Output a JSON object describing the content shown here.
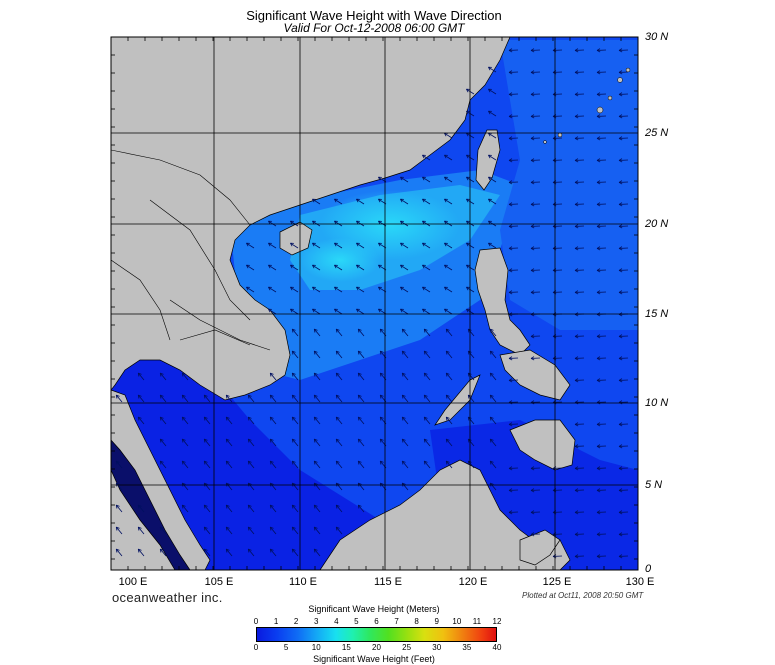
{
  "header": {
    "title": "Significant Wave Height with Wave Direction",
    "subtitle": "Valid For Oct-12-2008 06:00 GMT"
  },
  "map": {
    "lat_labels": [
      "30 N",
      "25 N",
      "20 N",
      "15 N",
      "10 N",
      "5 N",
      "0"
    ],
    "lon_labels": [
      "100 E",
      "105 E",
      "110 E",
      "115 E",
      "120 E",
      "125 E",
      "130 E"
    ],
    "land_color": "#c0c0c0",
    "sea_colors": {
      "deep_blue": "#0a1ae8",
      "blue": "#0f47f0",
      "light_blue": "#1a7cf5",
      "cyan": "#29c8f5"
    }
  },
  "footer": {
    "brand": "oceanweather inc.",
    "plotted": "Plotted at Oct11, 2008 20:50 GMT"
  },
  "colorbar": {
    "title_top": "Significant Wave Height (Meters)",
    "title_bottom": "Significant Wave Height (Feet)",
    "meters": [
      "0",
      "1",
      "2",
      "3",
      "4",
      "5",
      "6",
      "7",
      "8",
      "9",
      "10",
      "11",
      "12"
    ],
    "feet": [
      "0",
      "5",
      "10",
      "15",
      "20",
      "25",
      "30",
      "35",
      "40"
    ]
  }
}
